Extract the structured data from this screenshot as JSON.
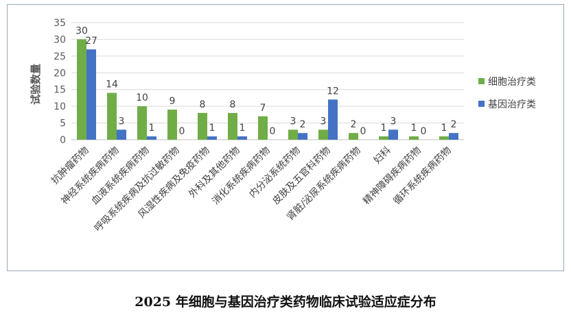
{
  "caption": "2025 年细胞与基因治疗类药物临床试验适应症分布",
  "chart_data": {
    "type": "bar",
    "title": "",
    "xlabel": "",
    "ylabel": "试验数量",
    "ylim": [
      0,
      35
    ],
    "yticks": [
      0,
      5,
      10,
      15,
      20,
      25,
      30,
      35
    ],
    "grid": true,
    "legend_position": "right",
    "categories": [
      "抗肿瘤药物",
      "神经系统疾病药物",
      "血液系统疾病药物",
      "呼吸系统疾病及抗过敏药物",
      "风湿性疾病及免疫药物",
      "外科及其他药物",
      "消化系统疾病药物",
      "内分泌系统药物",
      "皮肤及五官科药物",
      "肾脏/泌尿系统疾病药物",
      "妇科",
      "精神障碍疾病药物",
      "循环系统疾病药物"
    ],
    "series": [
      {
        "name": "细胞治疗类",
        "color": "#70ad47",
        "values": [
          30,
          14,
          10,
          9,
          8,
          8,
          7,
          3,
          3,
          2,
          1,
          1,
          1
        ]
      },
      {
        "name": "基因治疗类",
        "color": "#4472c4",
        "values": [
          27,
          3,
          1,
          0,
          1,
          1,
          0,
          2,
          12,
          0,
          3,
          0,
          2
        ]
      }
    ]
  }
}
